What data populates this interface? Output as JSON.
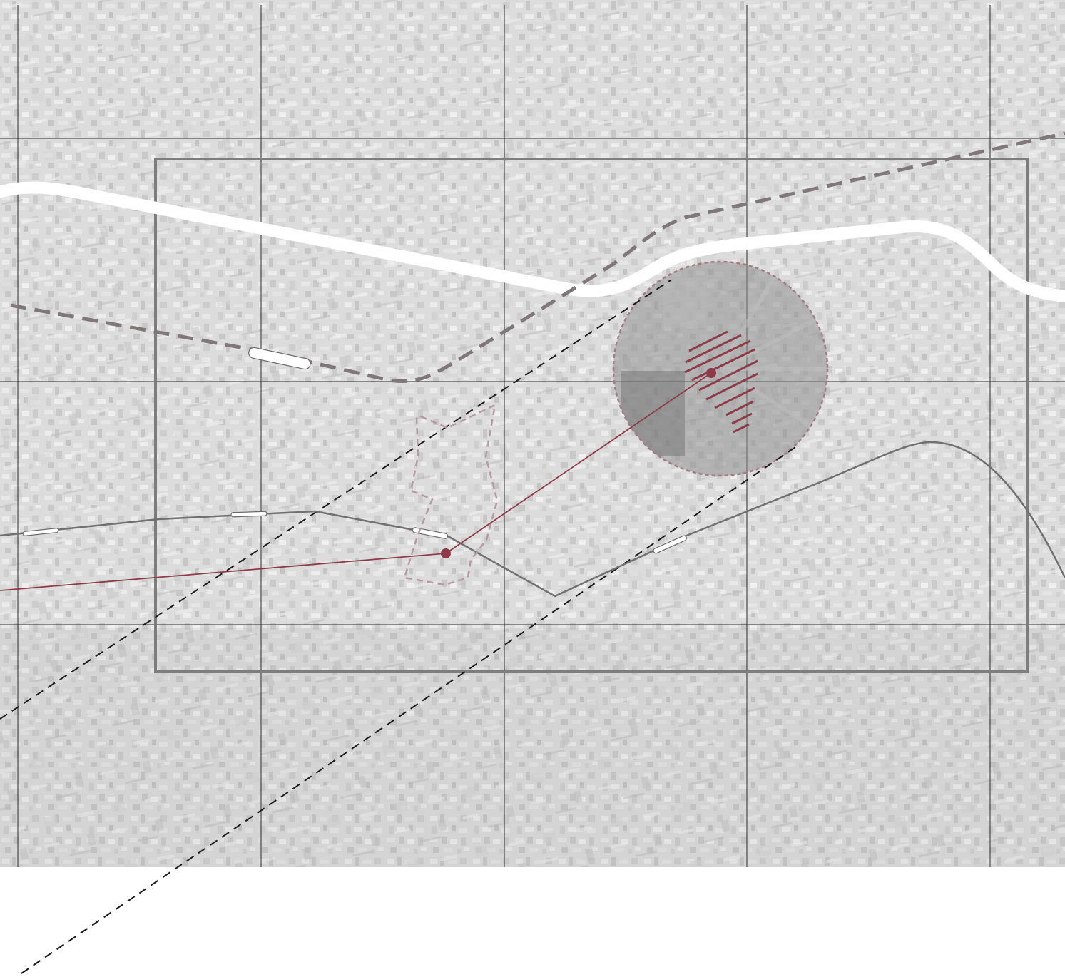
{
  "map": {
    "colors": {
      "page_background": "#ffffff",
      "aerial_base": "#c9c9c9",
      "aerial_texture_dark": "#9e9e9e",
      "aerial_texture_light": "#e2e2e2",
      "grid_line": "#2b2b2b",
      "boundary_frame": "#7d7d7d",
      "main_road": "#ffffff",
      "dashed_railway": "#807878",
      "dashed_alignment": "#1a1a1a",
      "transit_line": "#707070",
      "station_fill": "#ffffff",
      "station_outline": "#6a6a6a",
      "accent_red": "#8e3a48",
      "focus_area_outline": "#a37b83",
      "site_boundary_outline": "#b59aa0",
      "catchment_fill": "#8f8f8f"
    },
    "layers": [
      {
        "name": "aerial-imagery",
        "visible": true
      },
      {
        "name": "reference-grid",
        "visible": true
      },
      {
        "name": "study-area-frame",
        "visible": true
      },
      {
        "name": "main-road",
        "visible": true
      },
      {
        "name": "dashed-railway",
        "visible": true
      },
      {
        "name": "proposed-alignment",
        "visible": true
      },
      {
        "name": "transit-line",
        "visible": true
      },
      {
        "name": "stations",
        "visible": true
      },
      {
        "name": "connection-lines",
        "visible": true
      },
      {
        "name": "site-boundary",
        "visible": true
      },
      {
        "name": "catchment-area",
        "visible": true
      },
      {
        "name": "hatched-focus-zone",
        "visible": true
      }
    ],
    "markers": [
      {
        "name": "site-node",
        "icon": "dot-marker-icon"
      },
      {
        "name": "catchment-center-node",
        "icon": "dot-marker-icon"
      }
    ],
    "station_count": 5
  }
}
